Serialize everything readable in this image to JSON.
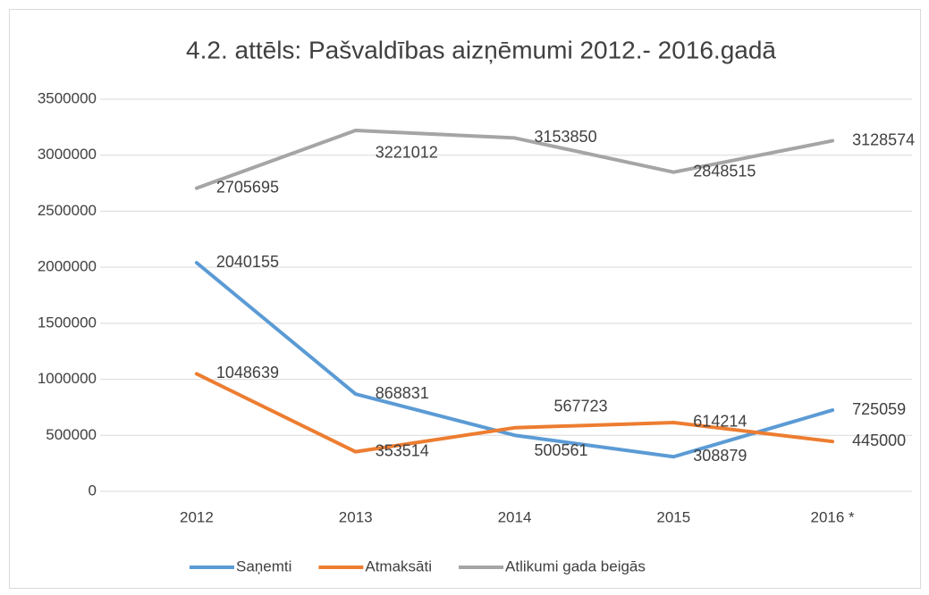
{
  "chart_data": {
    "type": "line",
    "title": "4.2. attēls: Pašvaldības aizņēmumi 2012.- 2016.gadā",
    "categories": [
      "2012",
      "2013",
      "2014",
      "2015",
      "2016 *"
    ],
    "series": [
      {
        "name": "Saņemti",
        "color": "#5b9bd5",
        "values": [
          2040155,
          868831,
          500561,
          308879,
          725059
        ]
      },
      {
        "name": "Atmaksāti",
        "color": "#ed7d31",
        "values": [
          1048639,
          353514,
          567723,
          614214,
          445000
        ]
      },
      {
        "name": "Atlikumi gada beigās",
        "color": "#a5a5a5",
        "values": [
          2705695,
          3221012,
          3153850,
          2848515,
          3128574
        ]
      }
    ],
    "ylim": [
      0,
      3500000
    ],
    "yticks": [
      0,
      500000,
      1000000,
      1500000,
      2000000,
      2500000,
      3000000,
      3500000
    ],
    "grid": true,
    "legend": "bottom"
  }
}
